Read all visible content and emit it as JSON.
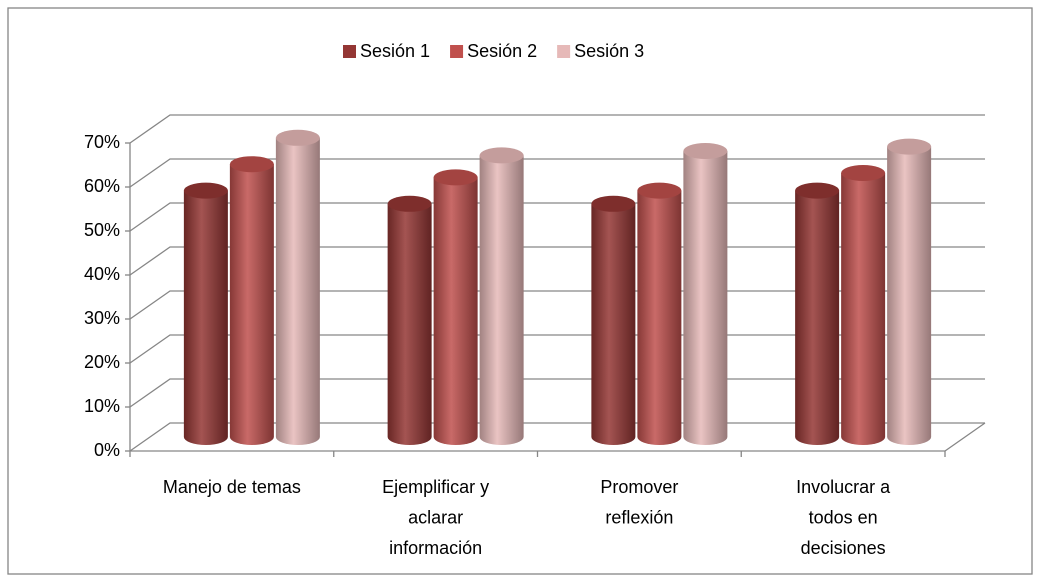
{
  "chart_data": {
    "type": "bar3d",
    "categories": [
      "Manejo de temas",
      "Ejemplificar y aclarar información",
      "Promover reflexión",
      "Involucrar a todos en decisiones"
    ],
    "series": [
      {
        "name": "Sesión 1",
        "color": "#943634",
        "values": [
          56,
          53,
          53,
          56
        ]
      },
      {
        "name": "Sesión 2",
        "color": "#c0504d",
        "values": [
          62,
          59,
          56,
          60
        ]
      },
      {
        "name": "Sesión 3",
        "color": "#e6b9b8",
        "values": [
          68,
          64,
          65,
          66
        ]
      }
    ],
    "ylim": [
      0,
      70
    ],
    "yticks": [
      {
        "value": 0,
        "label": "0%"
      },
      {
        "value": 10,
        "label": "10%"
      },
      {
        "value": 20,
        "label": "20%"
      },
      {
        "value": 30,
        "label": "30%"
      },
      {
        "value": 40,
        "label": "40%"
      },
      {
        "value": 50,
        "label": "50%"
      },
      {
        "value": 60,
        "label": "60%"
      },
      {
        "value": 70,
        "label": "70%"
      }
    ],
    "grid": true,
    "legend": "top"
  }
}
